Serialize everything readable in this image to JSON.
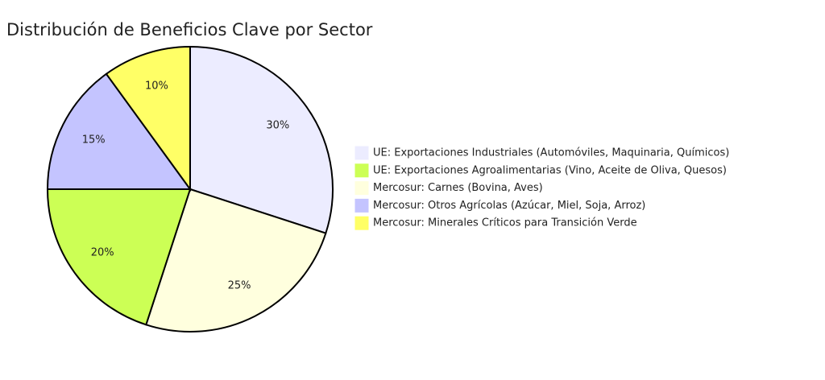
{
  "chart_data": {
    "type": "pie",
    "title": "Distribución de Beneficios Clave por Sector",
    "categories": [
      "UE: Exportaciones Industriales (Automóviles, Maquinaria, Químicos)",
      "UE: Exportaciones Agroalimentarias (Vino, Aceite de Oliva, Quesos)",
      "Mercosur: Carnes (Bovina, Aves)",
      "Mercosur: Otros Agrícolas (Azúcar, Miel, Soja, Arroz)",
      "Mercosur: Minerales Críticos para Transición Verde"
    ],
    "values": [
      30,
      20,
      25,
      15,
      10
    ],
    "value_labels": [
      "30%",
      "20%",
      "25%",
      "15%",
      "10%"
    ],
    "colors": [
      "#ececff",
      "#ccff55",
      "#ffffde",
      "#c4c4ff",
      "#ffff66"
    ],
    "slice_order": [
      0,
      2,
      1,
      3,
      4
    ]
  }
}
